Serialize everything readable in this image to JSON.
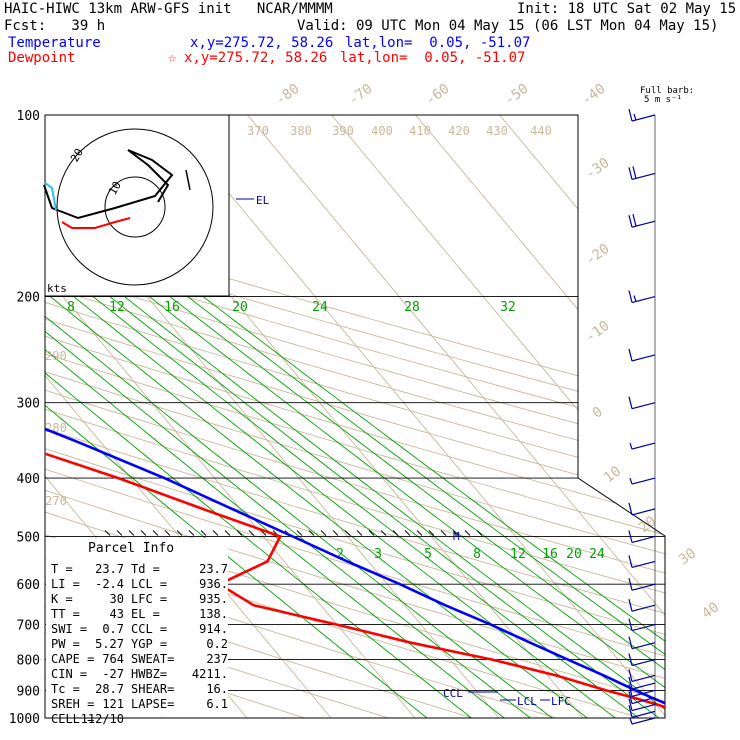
{
  "header": {
    "model": "HAIC-HIWC 13km ARW-GFS init   NCAR/MMMM",
    "init": "Init: 18 UTC Sat 02 May 15",
    "fcst": "Fcst:   39 h",
    "valid": "Valid: 09 UTC Mon 04 May 15 (06 LST Mon 04 May 15)",
    "temp_label": "Temperature",
    "temp_xy": "x,y=275.72, 58.26",
    "temp_latlon": "lat,lon=  0.05, -51.07",
    "dew_label": "Dewpoint",
    "dew_marker": "☆",
    "dew_xy": "x,y=275.72, 58.26",
    "dew_latlon": "lat,lon=  0.05, -51.07",
    "barb_scale_title": "Full barb:",
    "barb_scale_units": "5 m s⁻¹"
  },
  "colors": {
    "temperature": "#0000ff",
    "dewpoint": "#ff0000",
    "isotherm": "#c8b89a",
    "mixing_ratio": "#00a000",
    "barb": "#0000a0",
    "hodo_cyan": "#33bbee"
  },
  "hodograph": {
    "units": "kts",
    "ring_labels": [
      "10",
      "20"
    ]
  },
  "parcel": {
    "title": "Parcel  Info",
    "rows": [
      [
        "T  =",
        "23.7",
        "Td =",
        "23.7"
      ],
      [
        "LI =",
        "-2.4",
        "LCL =",
        "936."
      ],
      [
        "K  =",
        "30",
        "LFC =",
        "935."
      ],
      [
        "TT =",
        "43",
        "EL  =",
        "138."
      ],
      [
        "SWI =",
        "0.7",
        "CCL =",
        "914."
      ],
      [
        "PW =",
        "5.27",
        "YGP =",
        "0.2"
      ],
      [
        "CAPE =",
        "764",
        "SWEAT=",
        "237"
      ],
      [
        "CIN =",
        "-27",
        "HWBZ=",
        "4211."
      ],
      [
        "Tc =",
        "28.7",
        "SHEAR=",
        "16."
      ],
      [
        "SREH =",
        "121",
        "LAPSE=",
        "6.1"
      ],
      [
        "CELL =",
        "112/10",
        "",
        ""
      ]
    ]
  },
  "level_markers": {
    "el": "EL",
    "m": "M",
    "ccl": "CCL",
    "lcl": "LCL",
    "lfc": "LFC"
  },
  "chart_data": {
    "type": "line",
    "title": "HAIC-HIWC 13km ARW-GFS init   NCAR/MMMM",
    "ylabel": "",
    "xlabel": "",
    "y_scale": "log",
    "ylim": [
      1000,
      100
    ],
    "pressure_ticks": [
      100,
      200,
      300,
      400,
      500,
      600,
      700,
      800,
      900,
      1000
    ],
    "isotherm_labels": [
      -80,
      -70,
      -60,
      -50,
      -40,
      -30,
      -20,
      -10,
      0,
      10,
      20,
      30,
      40
    ],
    "theta_labels": [
      270,
      280,
      290,
      370,
      380,
      390,
      400,
      410,
      420,
      430,
      440
    ],
    "mixing_ratio_labels_upper": [
      8,
      12,
      16,
      20,
      24,
      28,
      32
    ],
    "mixing_ratio_labels_lower": [
      2,
      3,
      5,
      8,
      12,
      16,
      20,
      24
    ],
    "series": [
      {
        "name": "Temperature",
        "pressure": [
          1000,
          950,
          925,
          900,
          850,
          800,
          750,
          700,
          650,
          600,
          550,
          500,
          450,
          400,
          350,
          300,
          250,
          200,
          175,
          150,
          125,
          115,
          100
        ],
        "values": [
          23.7,
          21.5,
          20.2,
          19.0,
          16.7,
          14.0,
          11.2,
          8.3,
          4.8,
          1.5,
          -2.5,
          -6.5,
          -11.0,
          -16.0,
          -22.5,
          -30.5,
          -40.0,
          -52.5,
          -59.5,
          -68.0,
          -77.5,
          -81.0,
          -76.0
        ]
      },
      {
        "name": "Dewpoint",
        "pressure": [
          1000,
          950,
          925,
          900,
          850,
          800,
          750,
          700,
          650,
          600,
          550,
          500,
          450,
          400,
          350,
          300,
          250,
          200,
          175,
          150,
          125,
          115,
          100
        ],
        "values": [
          23.7,
          20.2,
          18.0,
          15.5,
          11.0,
          5.0,
          -3.0,
          -10.0,
          -18.0,
          -20.0,
          -12.0,
          -8.0,
          -14.5,
          -21.5,
          -30.5,
          -37.0,
          -47.0,
          -59.0,
          -68.0,
          -82.0,
          -90.0,
          -93.0,
          -92.0
        ]
      }
    ],
    "wind_barbs": {
      "pressure": [
        1000,
        975,
        950,
        925,
        900,
        875,
        850,
        800,
        750,
        700,
        650,
        600,
        550,
        500,
        450,
        400,
        350,
        300,
        250,
        200,
        150,
        125,
        100
      ],
      "speed_ms": [
        4,
        5,
        6,
        6,
        7,
        7,
        6,
        5,
        5,
        6,
        5,
        5,
        6,
        6,
        5,
        4,
        4,
        5,
        6,
        8,
        12,
        12,
        8
      ]
    }
  }
}
